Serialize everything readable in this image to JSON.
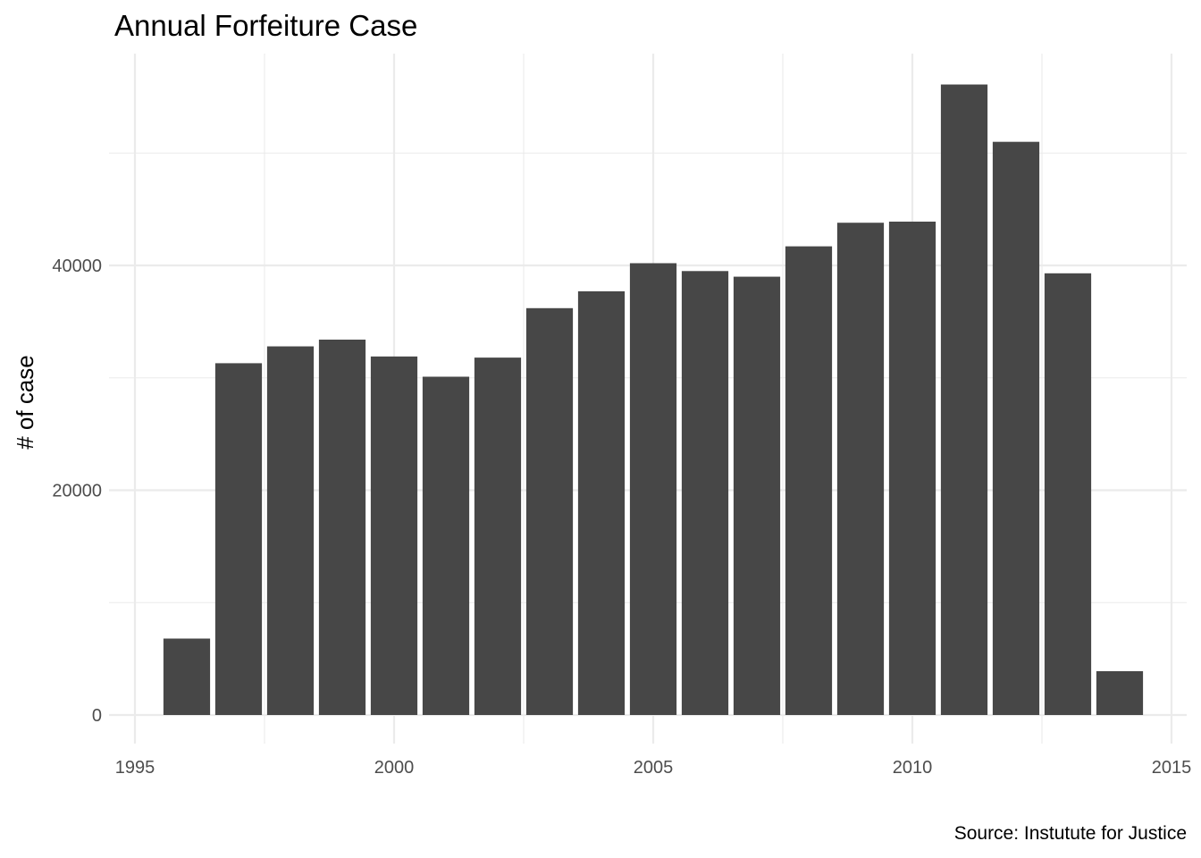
{
  "chart_data": {
    "type": "bar",
    "title": "Annual Forfeiture Case",
    "xlabel": "",
    "ylabel": "# of case",
    "caption": "Source: Instutute for Justice",
    "categories": [
      1996,
      1997,
      1998,
      1999,
      2000,
      2001,
      2002,
      2003,
      2004,
      2005,
      2006,
      2007,
      2008,
      2009,
      2010,
      2011,
      2012,
      2013,
      2014
    ],
    "values": [
      6800,
      31300,
      32800,
      33400,
      31900,
      30100,
      31800,
      36200,
      37700,
      40200,
      39500,
      39000,
      41700,
      43800,
      43900,
      56100,
      51000,
      39300,
      3900
    ],
    "xlim": [
      1995,
      2015
    ],
    "ylim": [
      0,
      58000
    ],
    "x_ticks": [
      1995,
      2000,
      2005,
      2010,
      2015
    ],
    "y_ticks": [
      0,
      20000,
      40000
    ],
    "y_minor_ticks": [
      10000,
      30000,
      50000
    ],
    "grid": true,
    "bar_color": "#474747",
    "grid_color": "#ebebeb"
  }
}
